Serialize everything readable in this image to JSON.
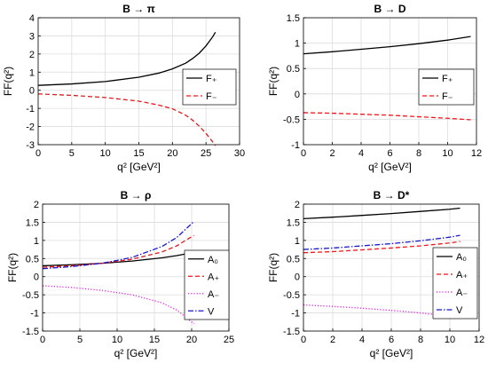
{
  "chart_data": [
    {
      "type": "line",
      "title": "B → π",
      "xlabel": "q² [GeV²]",
      "ylabel": "FF(q²)",
      "xlim": [
        0,
        30
      ],
      "ylim": [
        -3,
        4
      ],
      "xticks": [
        0,
        5,
        10,
        15,
        20,
        25,
        30
      ],
      "yticks": [
        -3,
        -2,
        -1,
        0,
        1,
        2,
        3,
        4
      ],
      "xtick_labels": [
        "0",
        "5",
        "10",
        "15",
        "20",
        "25",
        "30"
      ],
      "ytick_labels": [
        "-3",
        "-2",
        "-1",
        "0",
        "1",
        "2",
        "3",
        "4"
      ],
      "grid": true,
      "legend": "right",
      "series": [
        {
          "name": "F₊",
          "color": "#000000",
          "dash": "solid",
          "x": [
            0,
            5,
            10,
            15,
            18,
            20,
            22,
            23,
            24,
            25,
            26,
            26.4
          ],
          "y": [
            0.27,
            0.35,
            0.48,
            0.72,
            0.95,
            1.18,
            1.5,
            1.75,
            2.05,
            2.45,
            2.95,
            3.2
          ]
        },
        {
          "name": "F₋",
          "color": "#e8191c",
          "dash": "dashed",
          "x": [
            0,
            5,
            10,
            15,
            18,
            20,
            22,
            23,
            24,
            25,
            26,
            26.4
          ],
          "y": [
            -0.2,
            -0.28,
            -0.4,
            -0.6,
            -0.82,
            -1.02,
            -1.38,
            -1.65,
            -1.98,
            -2.38,
            -2.85,
            -3.05
          ]
        }
      ]
    },
    {
      "type": "line",
      "title": "B → D",
      "xlabel": "q² [GeV²]",
      "ylabel": "FF(q²)",
      "xlim": [
        0,
        12
      ],
      "ylim": [
        -1,
        1.5
      ],
      "xticks": [
        0,
        2,
        4,
        6,
        8,
        10,
        12
      ],
      "yticks": [
        -1,
        -0.5,
        0,
        0.5,
        1,
        1.5
      ],
      "xtick_labels": [
        "0",
        "2",
        "4",
        "6",
        "8",
        "10",
        "12"
      ],
      "ytick_labels": [
        "-1",
        "-0.5",
        "0",
        "0.5",
        "1",
        "1.5"
      ],
      "grid": true,
      "legend": "right",
      "series": [
        {
          "name": "F₊",
          "color": "#000000",
          "dash": "solid",
          "x": [
            0,
            2,
            4,
            6,
            8,
            10,
            11.6
          ],
          "y": [
            0.79,
            0.83,
            0.88,
            0.93,
            0.99,
            1.06,
            1.13
          ]
        },
        {
          "name": "F₋",
          "color": "#e8191c",
          "dash": "dashed",
          "x": [
            0,
            2,
            4,
            6,
            8,
            10,
            11.6
          ],
          "y": [
            -0.37,
            -0.38,
            -0.4,
            -0.42,
            -0.45,
            -0.48,
            -0.51
          ]
        }
      ]
    },
    {
      "type": "line",
      "title": "B → ρ",
      "xlabel": "q² [GeV²]",
      "ylabel": "FF(q²)",
      "xlim": [
        0,
        25
      ],
      "ylim": [
        -1.5,
        2
      ],
      "xticks": [
        0,
        5,
        10,
        15,
        20,
        25
      ],
      "yticks": [
        -1.5,
        -1,
        -0.5,
        0,
        0.5,
        1,
        1.5,
        2
      ],
      "xtick_labels": [
        "0",
        "5",
        "10",
        "15",
        "20",
        "25"
      ],
      "ytick_labels": [
        "-1.5",
        "-1",
        "-0.5",
        "0",
        "0.5",
        "1",
        "1.5",
        "2"
      ],
      "grid": true,
      "legend": "bottom-right",
      "series": [
        {
          "name": "A₀",
          "color": "#000000",
          "dash": "solid",
          "x": [
            0,
            4,
            8,
            12,
            16,
            18,
            20.3
          ],
          "y": [
            0.3,
            0.33,
            0.37,
            0.43,
            0.52,
            0.58,
            0.67
          ]
        },
        {
          "name": "A₊",
          "color": "#e8191c",
          "dash": "dashed",
          "x": [
            0,
            4,
            8,
            12,
            16,
            18,
            20.3
          ],
          "y": [
            0.26,
            0.3,
            0.37,
            0.48,
            0.68,
            0.85,
            1.14
          ]
        },
        {
          "name": "A₋",
          "color": "#e61ee6",
          "dash": "dotted",
          "x": [
            0,
            4,
            8,
            12,
            16,
            18,
            20.3
          ],
          "y": [
            -0.25,
            -0.3,
            -0.38,
            -0.5,
            -0.72,
            -0.92,
            -1.3
          ]
        },
        {
          "name": "V",
          "color": "#1919cc",
          "dash": "dashdot",
          "x": [
            0,
            4,
            8,
            12,
            16,
            18,
            20.3
          ],
          "y": [
            0.22,
            0.28,
            0.37,
            0.53,
            0.83,
            1.08,
            1.52
          ]
        }
      ]
    },
    {
      "type": "line",
      "title": "B → D*",
      "xlabel": "q² [GeV²]",
      "ylabel": "FF(q²)",
      "xlim": [
        0,
        12
      ],
      "ylim": [
        -1.5,
        2
      ],
      "xticks": [
        0,
        2,
        4,
        6,
        8,
        10,
        12
      ],
      "yticks": [
        -1.5,
        -1,
        -0.5,
        0,
        0.5,
        1,
        1.5,
        2
      ],
      "xtick_labels": [
        "0",
        "2",
        "4",
        "6",
        "8",
        "10",
        "12"
      ],
      "ytick_labels": [
        "-1.5",
        "-1",
        "-0.5",
        "0",
        "0.5",
        "1",
        "1.5",
        "2"
      ],
      "grid": true,
      "legend": "bottom-right",
      "series": [
        {
          "name": "A₀",
          "color": "#000000",
          "dash": "solid",
          "x": [
            0,
            2,
            4,
            6,
            8,
            10,
            10.7
          ],
          "y": [
            1.6,
            1.64,
            1.69,
            1.74,
            1.8,
            1.86,
            1.89
          ]
        },
        {
          "name": "A₊",
          "color": "#e8191c",
          "dash": "dashed",
          "x": [
            0,
            2,
            4,
            6,
            8,
            10,
            10.7
          ],
          "y": [
            0.66,
            0.69,
            0.74,
            0.79,
            0.85,
            0.93,
            0.97
          ]
        },
        {
          "name": "A₋",
          "color": "#e61ee6",
          "dash": "dotted",
          "x": [
            0,
            2,
            4,
            6,
            8,
            10,
            10.7
          ],
          "y": [
            -0.78,
            -0.82,
            -0.87,
            -0.93,
            -1.0,
            -1.09,
            -1.13
          ]
        },
        {
          "name": "V",
          "color": "#1919cc",
          "dash": "dashdot",
          "x": [
            0,
            2,
            4,
            6,
            8,
            10,
            10.7
          ],
          "y": [
            0.75,
            0.79,
            0.85,
            0.91,
            0.99,
            1.09,
            1.14
          ]
        }
      ]
    }
  ]
}
